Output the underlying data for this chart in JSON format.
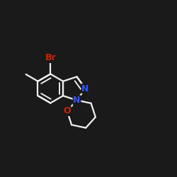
{
  "background": "#1a1a1a",
  "bond_color": "#f0f0f0",
  "bond_width": 1.6,
  "atom_colors": {
    "N": "#3355ff",
    "O": "#cc2200",
    "Br": "#cc2200",
    "C": "#f0f0f0"
  },
  "font_size": 9.5,
  "scale": 0.082
}
